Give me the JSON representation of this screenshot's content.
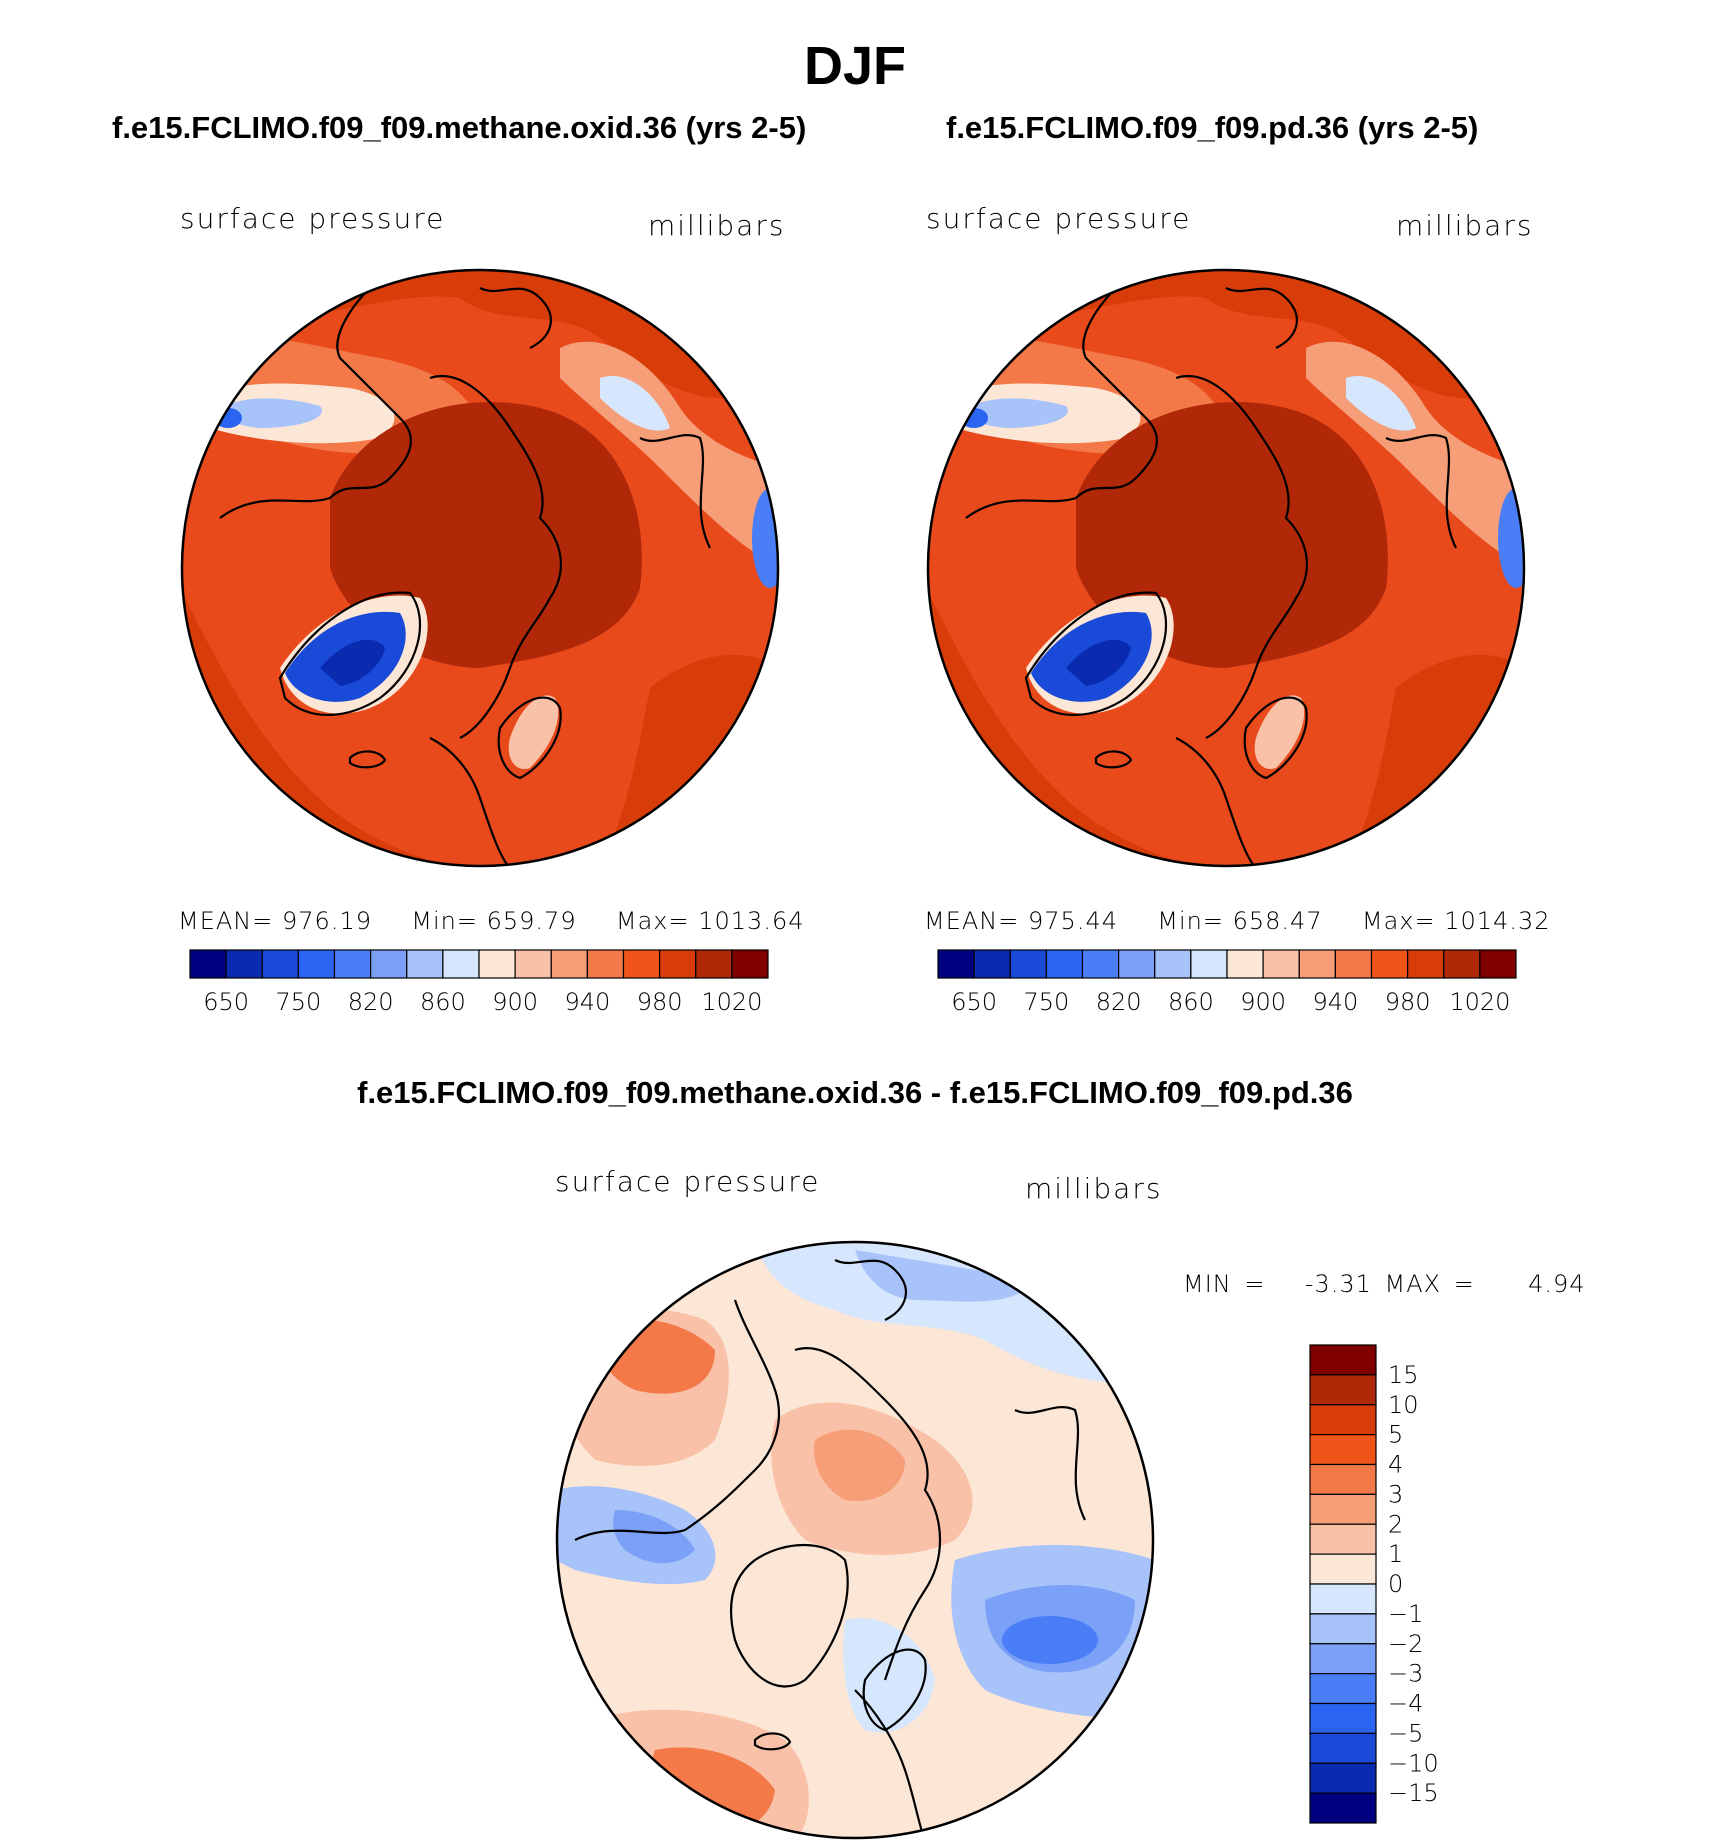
{
  "title": "DJF",
  "panels": [
    {
      "case_title": "f.e15.FCLIMO.f09_f09.methane.oxid.36 (yrs 2-5)",
      "variable": "surface pressure",
      "units": "millibars",
      "stats": {
        "mean_label": "MEAN=",
        "mean": "976.19",
        "min_label": "Min=",
        "min": "659.79",
        "max_label": "Max=",
        "max": "1013.64"
      }
    },
    {
      "case_title": "f.e15.FCLIMO.f09_f09.pd.36 (yrs 2-5)",
      "variable": "surface pressure",
      "units": "millibars",
      "stats": {
        "mean_label": "MEAN=",
        "mean": "975.44",
        "min_label": "Min=",
        "min": "658.47",
        "max_label": "Max=",
        "max": "1014.32"
      }
    }
  ],
  "diff_panel": {
    "case_title": "f.e15.FCLIMO.f09_f09.methane.oxid.36 - f.e15.FCLIMO.f09_f09.pd.36",
    "variable": "surface pressure",
    "units": "millibars",
    "stats": {
      "min_label": "MIN =",
      "min": "-3.31",
      "max_label": "MAX =",
      "max": "4.94"
    }
  },
  "chart_data": [
    {
      "type": "heatmap",
      "projection": "north polar stereographic",
      "title": "f.e15.FCLIMO.f09_f09.methane.oxid.36 (yrs 2-5)",
      "subtitle": "surface pressure",
      "units": "millibars",
      "mean": 976.19,
      "min": 659.79,
      "max": 1013.64,
      "colorbar_ticks": [
        "650",
        "750",
        "820",
        "860",
        "900",
        "940",
        "980",
        "1020"
      ],
      "colors": [
        "#000080",
        "#0a2ab0",
        "#1a4ad8",
        "#2a64f0",
        "#4a7ef6",
        "#7aa0f8",
        "#a8c2fa",
        "#d6e6fc",
        "#fce6d6",
        "#f9c2a8",
        "#f69e78",
        "#f37a48",
        "#f05418",
        "#d83c08",
        "#b02808",
        "#800000"
      ]
    },
    {
      "type": "heatmap",
      "projection": "north polar stereographic",
      "title": "f.e15.FCLIMO.f09_f09.pd.36 (yrs 2-5)",
      "subtitle": "surface pressure",
      "units": "millibars",
      "mean": 975.44,
      "min": 658.47,
      "max": 1014.32,
      "colorbar_ticks": [
        "650",
        "750",
        "820",
        "860",
        "900",
        "940",
        "980",
        "1020"
      ],
      "colors": [
        "#000080",
        "#0a2ab0",
        "#1a4ad8",
        "#2a64f0",
        "#4a7ef6",
        "#7aa0f8",
        "#a8c2fa",
        "#d6e6fc",
        "#fce6d6",
        "#f9c2a8",
        "#f69e78",
        "#f37a48",
        "#f05418",
        "#d83c08",
        "#b02808",
        "#800000"
      ]
    },
    {
      "type": "heatmap",
      "projection": "north polar stereographic",
      "title": "f.e15.FCLIMO.f09_f09.methane.oxid.36 - f.e15.FCLIMO.f09_f09.pd.36",
      "subtitle": "surface pressure",
      "units": "millibars",
      "min": -3.31,
      "max": 4.94,
      "colorbar_ticks_top_to_bottom": [
        "15",
        "10",
        "5",
        "4",
        "3",
        "2",
        "1",
        "0",
        "−1",
        "−2",
        "−3",
        "−4",
        "−5",
        "−10",
        "−15"
      ],
      "colors_top_to_bottom": [
        "#800000",
        "#b02808",
        "#d83c08",
        "#f05418",
        "#f37a48",
        "#f69e78",
        "#f9c2a8",
        "#fce6d6",
        "#d6e6fc",
        "#a8c2fa",
        "#7aa0f8",
        "#4a7ef6",
        "#2a64f0",
        "#1a4ad8",
        "#0a2ab0",
        "#000080"
      ]
    }
  ]
}
